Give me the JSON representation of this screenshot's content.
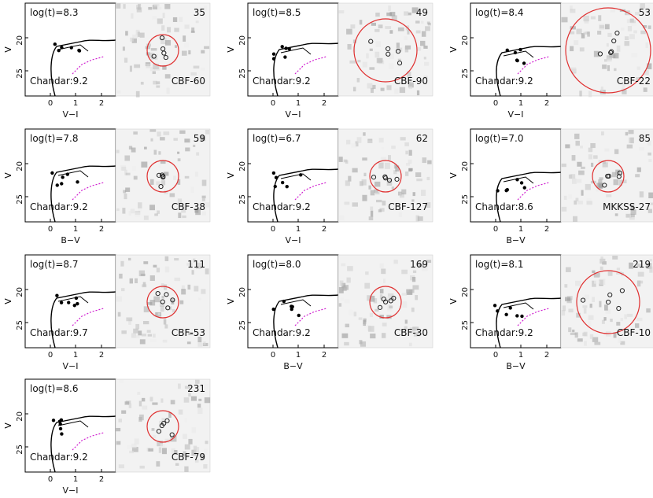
{
  "figure": {
    "panels": [
      {
        "age": "log(t)=8.3",
        "z": "Chandar:9.2",
        "id": "35",
        "name": "CBF-60",
        "xlabel": "V−I",
        "ring": "small"
      },
      {
        "age": "log(t)=8.5",
        "z": "Chandar:9.2",
        "id": "49",
        "name": "CBF-90",
        "xlabel": "V−I",
        "ring": "large"
      },
      {
        "age": "log(t)=8.4",
        "z": "Chandar:9.2",
        "id": "53",
        "name": "CBF-22",
        "xlabel": "V−I",
        "ring": "xlarge"
      },
      {
        "age": "log(t)=7.8",
        "z": "Chandar:9.2",
        "id": "59",
        "name": "CBF-38",
        "xlabel": "B−V",
        "ring": "small"
      },
      {
        "age": "log(t)=6.7",
        "z": "Chandar:9.2",
        "id": "62",
        "name": "CBF-127",
        "xlabel": "V−I",
        "ring": "small"
      },
      {
        "age": "log(t)=7.0",
        "z": "Chandar:8.6",
        "id": "85",
        "name": "MKKSS-27",
        "xlabel": "B−V",
        "ring": "small"
      },
      {
        "age": "log(t)=8.7",
        "z": "Chandar:9.7",
        "id": "111",
        "name": "CBF-53",
        "xlabel": "V−I",
        "ring": "small"
      },
      {
        "age": "log(t)=8.0",
        "z": "Chandar:9.2",
        "id": "169",
        "name": "CBF-30",
        "xlabel": "B−V",
        "ring": "small"
      },
      {
        "age": "log(t)=8.1",
        "z": "Chandar:9.2",
        "id": "219",
        "name": "CBF-10",
        "xlabel": "B−V",
        "ring": "large"
      },
      {
        "age": "log(t)=8.6",
        "z": "Chandar:9.2",
        "id": "231",
        "name": "CBF-79",
        "xlabel": "V−I",
        "ring": "small"
      }
    ]
  },
  "axes": {
    "ylabel": "V",
    "yticks": [
      "20",
      "25"
    ],
    "xticks": [
      "0",
      "1",
      "2"
    ]
  },
  "colors": {
    "isochrone": "#000000",
    "points": "#000000",
    "magenta_track": "#d020d0",
    "aperture": "#e03030",
    "frame": "#000000"
  }
}
